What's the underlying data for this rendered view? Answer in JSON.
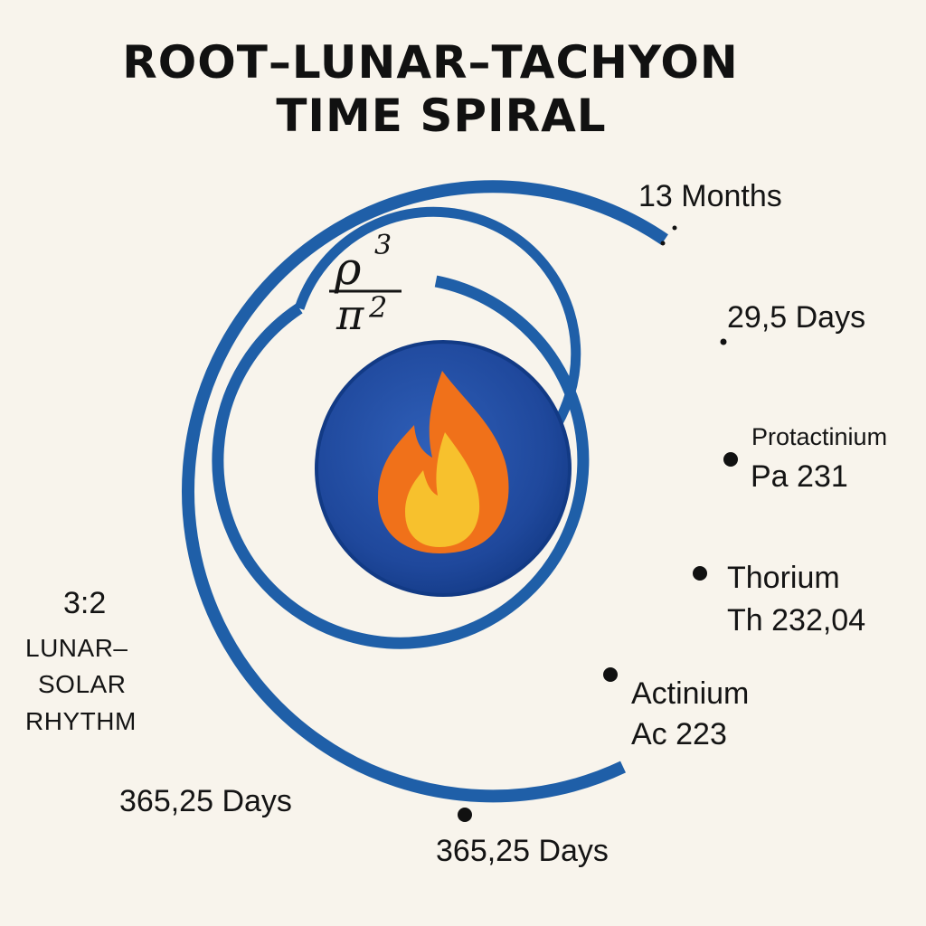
{
  "title": {
    "line1": "ROOT–LUNAR–TACHYON",
    "line2": "TIME SPIRAL"
  },
  "formula": {
    "numerator_base": "ρ",
    "numerator_exponent": "3",
    "denominator_base": "π",
    "denominator_exponent": "2"
  },
  "center_icon": "flame-icon",
  "colors": {
    "background": "#f8f4ec",
    "spiral": "#1f5fa8",
    "core_inner": "#2a4fa8",
    "core_outer": "#123a85",
    "flame_outer": "#f0711a",
    "flame_inner": "#f7c12d",
    "marker": "#111111"
  },
  "labels": {
    "months": "13 Months",
    "lunar_days": "29,5 Days",
    "protactinium_name": "Protactinium",
    "protactinium_value": "Pa 231",
    "thorium_name": "Thorium",
    "thorium_value": "Th 232,04",
    "actinium_name": "Actinium",
    "actinium_value": "Ac 223",
    "ratio": "3:2",
    "rhythm_line1": "LUNAR–",
    "rhythm_line2": "SOLAR",
    "rhythm_line3": "RHYTHM",
    "solar_days_left": "365,25 Days",
    "solar_days_bottom": "365,25 Days"
  }
}
